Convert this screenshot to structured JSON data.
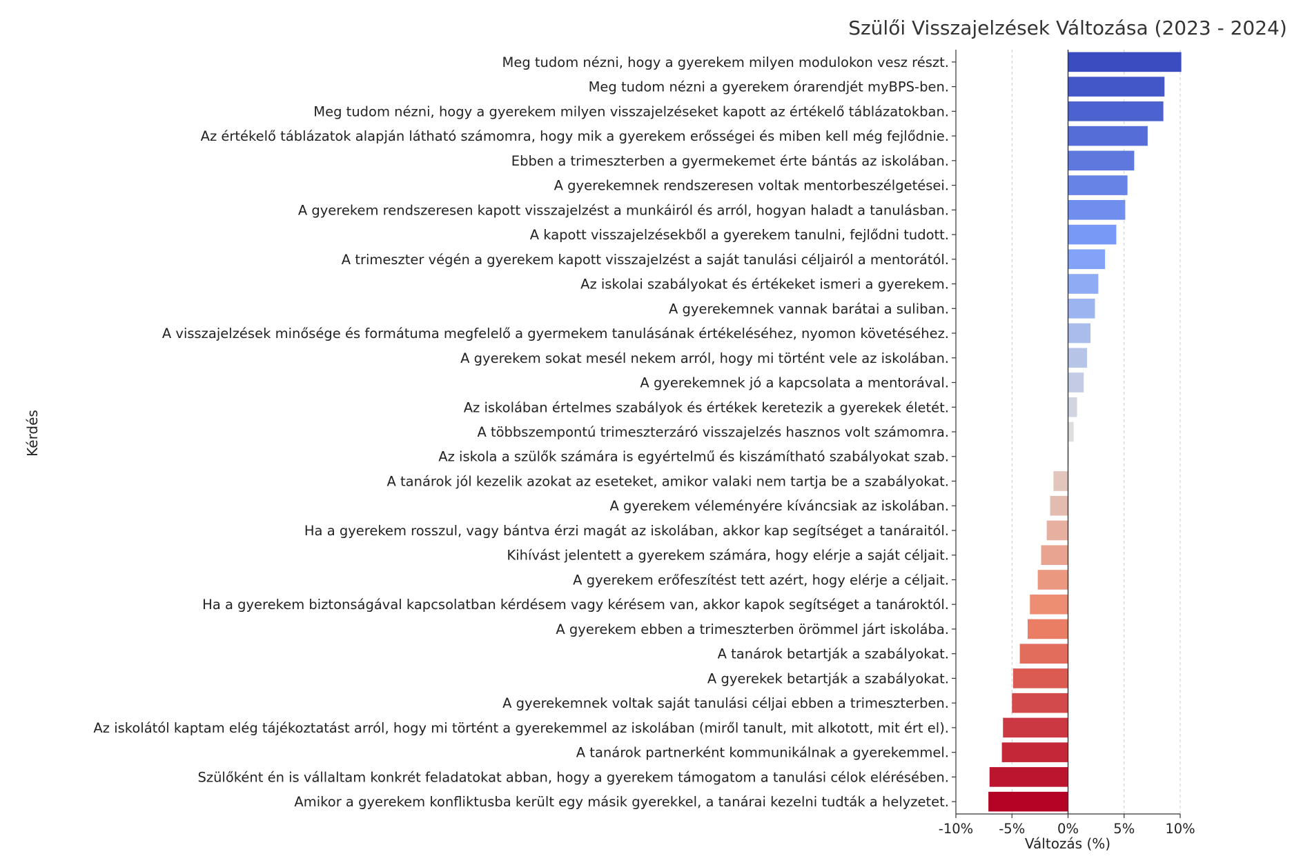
{
  "chart_data": {
    "type": "bar",
    "orientation": "horizontal",
    "title": "Szülői Visszajelzések Változása (2023 - 2024)",
    "xlabel": "Változás (%)",
    "ylabel": "Kérdés",
    "xlim": [
      -10,
      10
    ],
    "xticks": [
      -10,
      -5,
      0,
      5,
      10
    ],
    "xtick_labels": [
      "-10%",
      "-5%",
      "0%",
      "5%",
      "10%"
    ],
    "grid": "x-dashed",
    "colormap": "coolwarm",
    "categories": [
      "Meg tudom nézni, hogy a gyerekem milyen modulokon vesz részt.",
      "Meg tudom nézni a gyerekem órarendjét myBPS-ben.",
      "Meg tudom nézni, hogy a gyerekem milyen visszajelzéseket kapott az értékelő táblázatokban.",
      "Az értékelő táblázatok alapján látható számomra, hogy mik a gyerekem erősségei és miben kell még fejlődnie.",
      "Ebben a trimeszterben a gyermekemet érte bántás az iskolában.",
      "A gyerekemnek rendszeresen voltak mentorbeszélgetései.",
      "A gyerekem rendszeresen kapott visszajelzést a munkáiról és arról, hogyan haladt a tanulásban.",
      "A kapott visszajelzésekből a gyerekem tanulni, fejlődni tudott.",
      "A trimeszter végén a gyerekem kapott visszajelzést a saját tanulási céljairól a mentorától.",
      "Az iskolai szabályokat és értékeket ismeri a gyerekem.",
      "A gyerekemnek vannak barátai a suliban.",
      "A visszajelzések minősége és formátuma megfelelő a gyermekem tanulásának értékeléséhez, nyomon követéséhez.",
      "A gyerekem sokat mesél nekem arról, hogy mi történt vele az iskolában.",
      "A gyerekemnek jó a kapcsolata a mentorával.",
      "Az iskolában értelmes szabályok és értékek keretezik a gyerekek életét.",
      "A többszempontú trimeszterzáró visszajelzés hasznos volt számomra.",
      "Az iskola a szülők számára is egyértelmű és kiszámítható szabályokat szab.",
      "A tanárok jól kezelik azokat az eseteket, amikor valaki nem tartja be a szabályokat.",
      "A gyerekem véleményére kíváncsiak az iskolában.",
      "Ha a gyerekem rosszul, vagy bántva érzi magát az iskolában, akkor kap segítséget a tanáraitól.",
      "Kihívást jelentett a gyerekem számára, hogy elérje a saját céljait.",
      "A gyerekem erőfeszítést tett azért, hogy elérje a céljait.",
      "Ha a gyerekem biztonságával kapcsolatban kérdésem vagy kérésem van, akkor kapok segítséget a tanároktól.",
      "A gyerekem ebben a trimeszterben örömmel járt iskolába.",
      "A tanárok betartják a szabályokat.",
      "A gyerekek betartják a szabályokat.",
      "A gyerekemnek voltak saját tanulási céljai ebben a trimeszterben.",
      "Az iskolától kaptam elég tájékoztatást arról, hogy mi történt a gyerekemmel az iskolában (miről tanult, mit alkotott, mit ért el).",
      "A tanárok partnerként kommunikálnak a gyerekemmel.",
      "Szülőként én is vállaltam konkrét feladatokat abban, hogy a gyerekem támogatom a tanulási célok elérésében.",
      "Amikor a gyerekem konfliktusba került egy másik gyerekkel, a tanárai kezelni tudták a helyzetet."
    ],
    "values": [
      10.1,
      8.6,
      8.5,
      7.1,
      5.9,
      5.3,
      5.1,
      4.3,
      3.3,
      2.7,
      2.4,
      2.0,
      1.7,
      1.4,
      0.8,
      0.5,
      0.05,
      -1.3,
      -1.6,
      -1.9,
      -2.4,
      -2.7,
      -3.4,
      -3.6,
      -4.3,
      -4.9,
      -5.0,
      -5.8,
      -5.9,
      -7.0,
      -7.1
    ]
  }
}
